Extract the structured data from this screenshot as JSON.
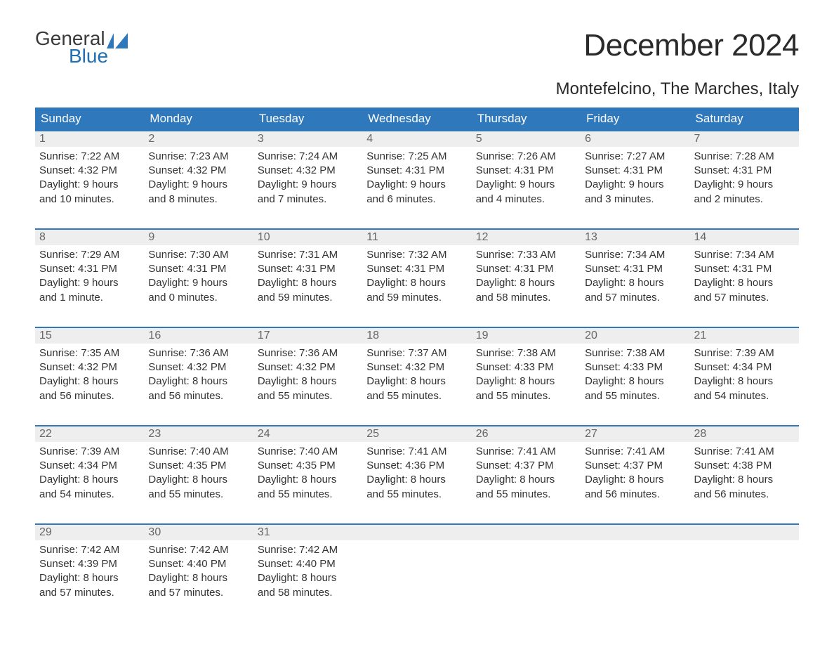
{
  "logo": {
    "line1": "General",
    "line2": "Blue"
  },
  "title": "December 2024",
  "location": "Montefelcino, The Marches, Italy",
  "colors": {
    "header_bg": "#2f78bb",
    "header_text": "#ffffff",
    "daynum_bg": "#eeeeee",
    "daynum_text": "#666666",
    "body_text": "#333333",
    "week_border": "#2f78bb",
    "logo_general": "#3a3a3a",
    "logo_blue": "#1f6fb2",
    "logo_flag": "#2f78bb"
  },
  "fonts": {
    "title_size": 44,
    "location_size": 24,
    "dow_size": 17,
    "daynum_size": 16,
    "body_size": 15
  },
  "days_of_week": [
    "Sunday",
    "Monday",
    "Tuesday",
    "Wednesday",
    "Thursday",
    "Friday",
    "Saturday"
  ],
  "weeks": [
    [
      {
        "n": "1",
        "sunrise": "Sunrise: 7:22 AM",
        "sunset": "Sunset: 4:32 PM",
        "d1": "Daylight: 9 hours",
        "d2": "and 10 minutes."
      },
      {
        "n": "2",
        "sunrise": "Sunrise: 7:23 AM",
        "sunset": "Sunset: 4:32 PM",
        "d1": "Daylight: 9 hours",
        "d2": "and 8 minutes."
      },
      {
        "n": "3",
        "sunrise": "Sunrise: 7:24 AM",
        "sunset": "Sunset: 4:32 PM",
        "d1": "Daylight: 9 hours",
        "d2": "and 7 minutes."
      },
      {
        "n": "4",
        "sunrise": "Sunrise: 7:25 AM",
        "sunset": "Sunset: 4:31 PM",
        "d1": "Daylight: 9 hours",
        "d2": "and 6 minutes."
      },
      {
        "n": "5",
        "sunrise": "Sunrise: 7:26 AM",
        "sunset": "Sunset: 4:31 PM",
        "d1": "Daylight: 9 hours",
        "d2": "and 4 minutes."
      },
      {
        "n": "6",
        "sunrise": "Sunrise: 7:27 AM",
        "sunset": "Sunset: 4:31 PM",
        "d1": "Daylight: 9 hours",
        "d2": "and 3 minutes."
      },
      {
        "n": "7",
        "sunrise": "Sunrise: 7:28 AM",
        "sunset": "Sunset: 4:31 PM",
        "d1": "Daylight: 9 hours",
        "d2": "and 2 minutes."
      }
    ],
    [
      {
        "n": "8",
        "sunrise": "Sunrise: 7:29 AM",
        "sunset": "Sunset: 4:31 PM",
        "d1": "Daylight: 9 hours",
        "d2": "and 1 minute."
      },
      {
        "n": "9",
        "sunrise": "Sunrise: 7:30 AM",
        "sunset": "Sunset: 4:31 PM",
        "d1": "Daylight: 9 hours",
        "d2": "and 0 minutes."
      },
      {
        "n": "10",
        "sunrise": "Sunrise: 7:31 AM",
        "sunset": "Sunset: 4:31 PM",
        "d1": "Daylight: 8 hours",
        "d2": "and 59 minutes."
      },
      {
        "n": "11",
        "sunrise": "Sunrise: 7:32 AM",
        "sunset": "Sunset: 4:31 PM",
        "d1": "Daylight: 8 hours",
        "d2": "and 59 minutes."
      },
      {
        "n": "12",
        "sunrise": "Sunrise: 7:33 AM",
        "sunset": "Sunset: 4:31 PM",
        "d1": "Daylight: 8 hours",
        "d2": "and 58 minutes."
      },
      {
        "n": "13",
        "sunrise": "Sunrise: 7:34 AM",
        "sunset": "Sunset: 4:31 PM",
        "d1": "Daylight: 8 hours",
        "d2": "and 57 minutes."
      },
      {
        "n": "14",
        "sunrise": "Sunrise: 7:34 AM",
        "sunset": "Sunset: 4:31 PM",
        "d1": "Daylight: 8 hours",
        "d2": "and 57 minutes."
      }
    ],
    [
      {
        "n": "15",
        "sunrise": "Sunrise: 7:35 AM",
        "sunset": "Sunset: 4:32 PM",
        "d1": "Daylight: 8 hours",
        "d2": "and 56 minutes."
      },
      {
        "n": "16",
        "sunrise": "Sunrise: 7:36 AM",
        "sunset": "Sunset: 4:32 PM",
        "d1": "Daylight: 8 hours",
        "d2": "and 56 minutes."
      },
      {
        "n": "17",
        "sunrise": "Sunrise: 7:36 AM",
        "sunset": "Sunset: 4:32 PM",
        "d1": "Daylight: 8 hours",
        "d2": "and 55 minutes."
      },
      {
        "n": "18",
        "sunrise": "Sunrise: 7:37 AM",
        "sunset": "Sunset: 4:32 PM",
        "d1": "Daylight: 8 hours",
        "d2": "and 55 minutes."
      },
      {
        "n": "19",
        "sunrise": "Sunrise: 7:38 AM",
        "sunset": "Sunset: 4:33 PM",
        "d1": "Daylight: 8 hours",
        "d2": "and 55 minutes."
      },
      {
        "n": "20",
        "sunrise": "Sunrise: 7:38 AM",
        "sunset": "Sunset: 4:33 PM",
        "d1": "Daylight: 8 hours",
        "d2": "and 55 minutes."
      },
      {
        "n": "21",
        "sunrise": "Sunrise: 7:39 AM",
        "sunset": "Sunset: 4:34 PM",
        "d1": "Daylight: 8 hours",
        "d2": "and 54 minutes."
      }
    ],
    [
      {
        "n": "22",
        "sunrise": "Sunrise: 7:39 AM",
        "sunset": "Sunset: 4:34 PM",
        "d1": "Daylight: 8 hours",
        "d2": "and 54 minutes."
      },
      {
        "n": "23",
        "sunrise": "Sunrise: 7:40 AM",
        "sunset": "Sunset: 4:35 PM",
        "d1": "Daylight: 8 hours",
        "d2": "and 55 minutes."
      },
      {
        "n": "24",
        "sunrise": "Sunrise: 7:40 AM",
        "sunset": "Sunset: 4:35 PM",
        "d1": "Daylight: 8 hours",
        "d2": "and 55 minutes."
      },
      {
        "n": "25",
        "sunrise": "Sunrise: 7:41 AM",
        "sunset": "Sunset: 4:36 PM",
        "d1": "Daylight: 8 hours",
        "d2": "and 55 minutes."
      },
      {
        "n": "26",
        "sunrise": "Sunrise: 7:41 AM",
        "sunset": "Sunset: 4:37 PM",
        "d1": "Daylight: 8 hours",
        "d2": "and 55 minutes."
      },
      {
        "n": "27",
        "sunrise": "Sunrise: 7:41 AM",
        "sunset": "Sunset: 4:37 PM",
        "d1": "Daylight: 8 hours",
        "d2": "and 56 minutes."
      },
      {
        "n": "28",
        "sunrise": "Sunrise: 7:41 AM",
        "sunset": "Sunset: 4:38 PM",
        "d1": "Daylight: 8 hours",
        "d2": "and 56 minutes."
      }
    ],
    [
      {
        "n": "29",
        "sunrise": "Sunrise: 7:42 AM",
        "sunset": "Sunset: 4:39 PM",
        "d1": "Daylight: 8 hours",
        "d2": "and 57 minutes."
      },
      {
        "n": "30",
        "sunrise": "Sunrise: 7:42 AM",
        "sunset": "Sunset: 4:40 PM",
        "d1": "Daylight: 8 hours",
        "d2": "and 57 minutes."
      },
      {
        "n": "31",
        "sunrise": "Sunrise: 7:42 AM",
        "sunset": "Sunset: 4:40 PM",
        "d1": "Daylight: 8 hours",
        "d2": "and 58 minutes."
      },
      {
        "n": "",
        "blank": true
      },
      {
        "n": "",
        "blank": true
      },
      {
        "n": "",
        "blank": true
      },
      {
        "n": "",
        "blank": true
      }
    ]
  ]
}
